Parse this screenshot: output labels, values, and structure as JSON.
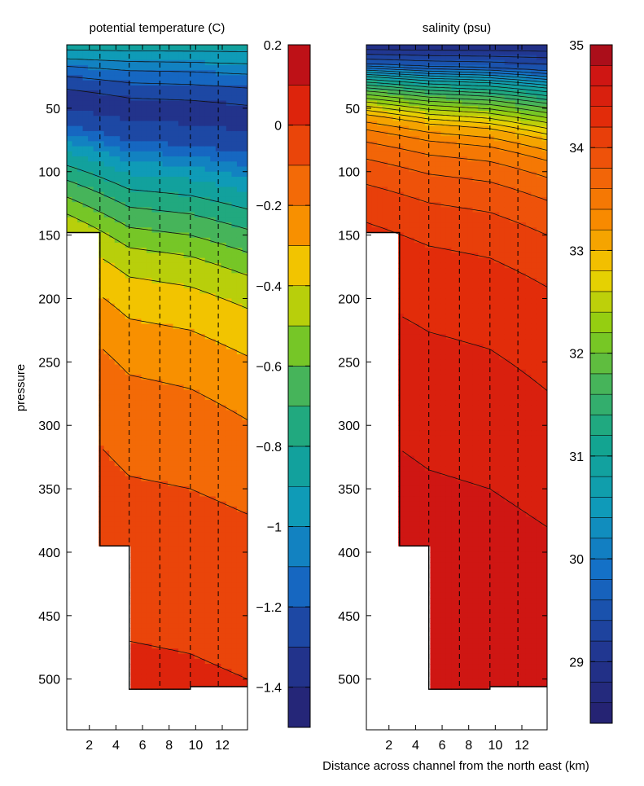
{
  "shared": {
    "x_label": "Distance across channel from the north east (km)",
    "y_label": "pressure",
    "x_ticks": [
      2,
      4,
      6,
      8,
      10,
      12
    ],
    "y_ticks": [
      50,
      100,
      150,
      200,
      250,
      300,
      350,
      400,
      450,
      500
    ],
    "station_lines_km": [
      2.8,
      5.0,
      7.3,
      9.6,
      11.7
    ]
  },
  "chart_data": [
    {
      "type": "heatmap",
      "title": "potential temperature (C)",
      "xlabel": "",
      "ylabel": "pressure",
      "xlim": [
        0.3,
        13.9
      ],
      "ylim": [
        0,
        540
      ],
      "y_inverted": true,
      "colorbar": {
        "min": -1.5,
        "max": 0.2,
        "step": 0.1,
        "tick_labels": [
          "0.2",
          "0",
          "−0.2",
          "−0.4",
          "−0.6",
          "−0.8",
          "−1",
          "−1.2",
          "−1.4"
        ],
        "tick_values": [
          0.2,
          0,
          -0.2,
          -0.4,
          -0.6,
          -0.8,
          -1,
          -1.2,
          -1.4
        ]
      },
      "bathymetry": [
        [
          0.3,
          148
        ],
        [
          2.8,
          148
        ],
        [
          2.8,
          395
        ],
        [
          5.0,
          395
        ],
        [
          5.0,
          508
        ],
        [
          9.6,
          508
        ],
        [
          9.6,
          506
        ],
        [
          13.9,
          506
        ]
      ],
      "profile": [
        {
          "p": 0,
          "v": -0.85
        },
        {
          "p": 8,
          "v": -0.95
        },
        {
          "p": 20,
          "v": -1.15
        },
        {
          "p": 40,
          "v": -1.35
        },
        {
          "p": 60,
          "v": -1.25
        },
        {
          "p": 80,
          "v": -0.95
        },
        {
          "p": 100,
          "v": -0.75
        },
        {
          "p": 120,
          "v": -0.6
        },
        {
          "p": 140,
          "v": -0.45
        },
        {
          "p": 165,
          "v": -0.35
        },
        {
          "p": 195,
          "v": -0.25
        },
        {
          "p": 230,
          "v": -0.17
        },
        {
          "p": 270,
          "v": -0.12
        },
        {
          "p": 320,
          "v": -0.07
        },
        {
          "p": 370,
          "v": -0.03
        },
        {
          "p": 420,
          "v": 0.0
        },
        {
          "p": 540,
          "v": 0.05
        }
      ],
      "depth_shift": {
        "xs": [
          0.3,
          5.0,
          9.6,
          13.9
        ],
        "shallow": [
          0,
          0,
          0,
          0
        ],
        "deep": [
          0,
          50,
          60,
          80
        ]
      }
    },
    {
      "type": "heatmap",
      "title": "salinity (psu)",
      "xlabel": "Distance across channel from the north east (km)",
      "ylabel": "",
      "xlim": [
        0.3,
        13.9
      ],
      "ylim": [
        0,
        540
      ],
      "y_inverted": true,
      "colorbar": {
        "min": 28.4,
        "max": 35.0,
        "step": 0.2,
        "tick_labels": [
          "35",
          "34",
          "33",
          "32",
          "31",
          "30",
          "29"
        ],
        "tick_values": [
          35,
          34,
          33,
          32,
          31,
          30,
          29
        ]
      },
      "bathymetry": [
        [
          0.3,
          148
        ],
        [
          2.8,
          148
        ],
        [
          2.8,
          395
        ],
        [
          5.0,
          395
        ],
        [
          5.0,
          508
        ],
        [
          9.6,
          508
        ],
        [
          9.6,
          506
        ],
        [
          13.9,
          506
        ]
      ],
      "profile": [
        {
          "p": 0,
          "v": 28.8
        },
        {
          "p": 15,
          "v": 29.6
        },
        {
          "p": 25,
          "v": 30.8
        },
        {
          "p": 35,
          "v": 31.7
        },
        {
          "p": 45,
          "v": 32.4
        },
        {
          "p": 55,
          "v": 33.0
        },
        {
          "p": 70,
          "v": 33.5
        },
        {
          "p": 90,
          "v": 33.8
        },
        {
          "p": 110,
          "v": 34.0
        },
        {
          "p": 140,
          "v": 34.2
        },
        {
          "p": 180,
          "v": 34.35
        },
        {
          "p": 240,
          "v": 34.5
        },
        {
          "p": 300,
          "v": 34.6
        },
        {
          "p": 400,
          "v": 34.7
        },
        {
          "p": 540,
          "v": 34.75
        }
      ],
      "depth_shift": {
        "xs": [
          0.3,
          5.0,
          9.6,
          13.9
        ],
        "shallow": [
          0,
          0,
          0,
          0
        ],
        "deep": [
          0,
          35,
          50,
          80
        ]
      }
    }
  ]
}
